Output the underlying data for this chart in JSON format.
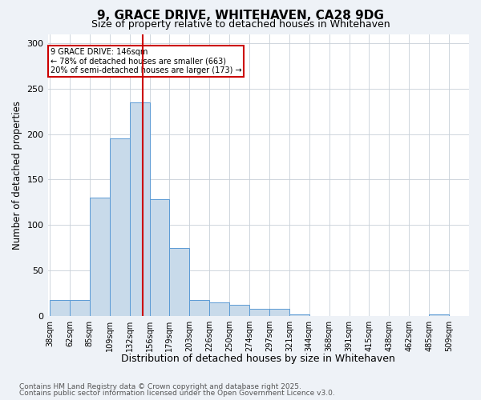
{
  "title1": "9, GRACE DRIVE, WHITEHAVEN, CA28 9DG",
  "title2": "Size of property relative to detached houses in Whitehaven",
  "xlabel": "Distribution of detached houses by size in Whitehaven",
  "ylabel": "Number of detached properties",
  "footnote1": "Contains HM Land Registry data © Crown copyright and database right 2025.",
  "footnote2": "Contains public sector information licensed under the Open Government Licence v3.0.",
  "bin_labels": [
    "38sqm",
    "62sqm",
    "85sqm",
    "109sqm",
    "132sqm",
    "156sqm",
    "179sqm",
    "203sqm",
    "226sqm",
    "250sqm",
    "274sqm",
    "297sqm",
    "321sqm",
    "344sqm",
    "368sqm",
    "391sqm",
    "415sqm",
    "438sqm",
    "462sqm",
    "485sqm",
    "509sqm"
  ],
  "bar_heights": [
    18,
    18,
    130,
    195,
    235,
    128,
    75,
    18,
    15,
    12,
    8,
    8,
    2,
    0,
    0,
    0,
    0,
    0,
    0,
    2,
    0
  ],
  "bar_color": "#c8daea",
  "bar_edge_color": "#5b9bd5",
  "property_size_idx": 4.67,
  "red_line_color": "#cc0000",
  "annotation_text": "9 GRACE DRIVE: 146sqm\n← 78% of detached houses are smaller (663)\n20% of semi-detached houses are larger (173) →",
  "annotation_box_color": "white",
  "annotation_box_edge_color": "#cc0000",
  "ylim": [
    0,
    310
  ],
  "yticks": [
    0,
    50,
    100,
    150,
    200,
    250,
    300
  ],
  "background_color": "#eef2f7",
  "plot_bg_color": "white",
  "grid_color": "#c8d0d8",
  "title_fontsize": 11,
  "subtitle_fontsize": 9,
  "ylabel_fontsize": 8.5,
  "xlabel_fontsize": 9,
  "tick_fontsize": 7,
  "footnote_fontsize": 6.5
}
